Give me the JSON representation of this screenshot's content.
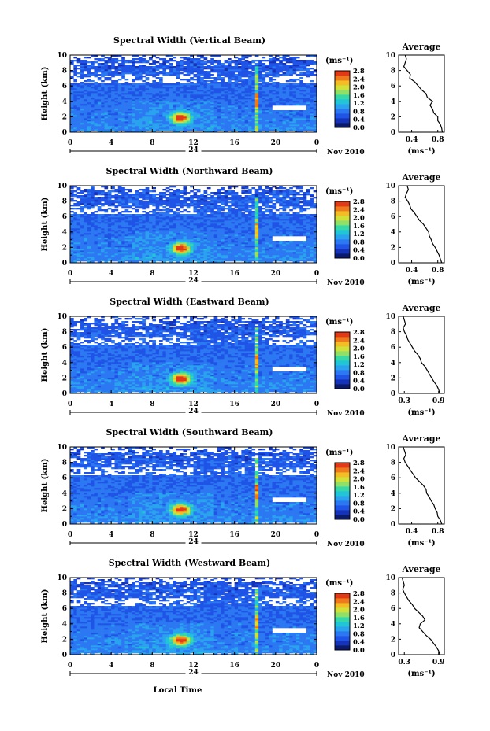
{
  "figure": {
    "height_label": "Height (km)",
    "local_time_label": "Local Time",
    "average_title": "Average",
    "unit_label": "(ms⁻¹)",
    "date_suffix": "Nov 2010",
    "day_label": "24",
    "time_ticks": [
      "0",
      "4",
      "8",
      "12",
      "16",
      "20",
      "0"
    ],
    "height_ticks": [
      "0",
      "2",
      "4",
      "6",
      "8",
      "10"
    ],
    "colorbar_ticks": [
      "0.0",
      "0.4",
      "0.8",
      "1.2",
      "1.6",
      "2.0",
      "2.4",
      "2.8"
    ]
  },
  "chart_data": [
    {
      "type": "heatmap",
      "title": "Spectral Width (Vertical Beam)",
      "x_range": [
        0,
        24
      ],
      "y_range": [
        0,
        10
      ],
      "avg_ticks": [
        "0.4",
        "0.8"
      ],
      "avg_range": [
        0.2,
        0.9
      ],
      "avg_profile": [
        [
          0.87,
          0
        ],
        [
          0.86,
          0.5
        ],
        [
          0.84,
          1
        ],
        [
          0.8,
          1.5
        ],
        [
          0.8,
          2
        ],
        [
          0.74,
          2.5
        ],
        [
          0.72,
          3
        ],
        [
          0.68,
          3.5
        ],
        [
          0.72,
          4
        ],
        [
          0.64,
          4.5
        ],
        [
          0.62,
          5
        ],
        [
          0.55,
          5.5
        ],
        [
          0.5,
          6
        ],
        [
          0.45,
          6.5
        ],
        [
          0.37,
          7
        ],
        [
          0.38,
          7.5
        ],
        [
          0.33,
          8
        ],
        [
          0.28,
          8.5
        ],
        [
          0.3,
          9
        ],
        [
          0.32,
          9.5
        ],
        [
          0.3,
          10
        ]
      ]
    },
    {
      "type": "heatmap",
      "title": "Spectral Width (Northward Beam)",
      "x_range": [
        0,
        24
      ],
      "y_range": [
        0,
        10
      ],
      "avg_ticks": [
        "0.4",
        "0.8"
      ],
      "avg_range": [
        0.2,
        0.9
      ],
      "avg_profile": [
        [
          0.86,
          0
        ],
        [
          0.84,
          0.5
        ],
        [
          0.82,
          1
        ],
        [
          0.79,
          1.5
        ],
        [
          0.76,
          2
        ],
        [
          0.72,
          2.5
        ],
        [
          0.7,
          3
        ],
        [
          0.67,
          3.5
        ],
        [
          0.66,
          4
        ],
        [
          0.62,
          4.5
        ],
        [
          0.58,
          5
        ],
        [
          0.52,
          5.5
        ],
        [
          0.48,
          6
        ],
        [
          0.44,
          6.5
        ],
        [
          0.39,
          7
        ],
        [
          0.37,
          7.5
        ],
        [
          0.34,
          8
        ],
        [
          0.3,
          8.5
        ],
        [
          0.32,
          9
        ],
        [
          0.35,
          9.5
        ],
        [
          0.33,
          10
        ]
      ]
    },
    {
      "type": "heatmap",
      "title": "Spectral Width (Eastward Beam)",
      "x_range": [
        0,
        24
      ],
      "y_range": [
        0,
        10
      ],
      "avg_ticks": [
        "0.3",
        "0.9"
      ],
      "avg_range": [
        0.2,
        1.0
      ],
      "avg_profile": [
        [
          0.92,
          0
        ],
        [
          0.9,
          0.5
        ],
        [
          0.87,
          1
        ],
        [
          0.82,
          1.5
        ],
        [
          0.78,
          2
        ],
        [
          0.74,
          2.5
        ],
        [
          0.7,
          3
        ],
        [
          0.66,
          3.5
        ],
        [
          0.6,
          4
        ],
        [
          0.58,
          4.5
        ],
        [
          0.54,
          5
        ],
        [
          0.48,
          5.5
        ],
        [
          0.44,
          6
        ],
        [
          0.4,
          6.5
        ],
        [
          0.36,
          7
        ],
        [
          0.34,
          7.5
        ],
        [
          0.3,
          8
        ],
        [
          0.28,
          8.5
        ],
        [
          0.32,
          9
        ],
        [
          0.3,
          9.5
        ],
        [
          0.28,
          10
        ]
      ]
    },
    {
      "type": "heatmap",
      "title": "Spectral Width (Southward Beam)",
      "x_range": [
        0,
        24
      ],
      "y_range": [
        0,
        10
      ],
      "avg_ticks": [
        "0.4",
        "0.8"
      ],
      "avg_range": [
        0.2,
        0.9
      ],
      "avg_profile": [
        [
          0.86,
          0
        ],
        [
          0.84,
          0.5
        ],
        [
          0.8,
          1
        ],
        [
          0.79,
          1.5
        ],
        [
          0.76,
          2
        ],
        [
          0.74,
          2.5
        ],
        [
          0.7,
          3
        ],
        [
          0.67,
          3.5
        ],
        [
          0.63,
          4
        ],
        [
          0.62,
          4.5
        ],
        [
          0.58,
          5
        ],
        [
          0.52,
          5.5
        ],
        [
          0.46,
          6
        ],
        [
          0.42,
          6.5
        ],
        [
          0.38,
          7
        ],
        [
          0.34,
          7.5
        ],
        [
          0.3,
          8
        ],
        [
          0.28,
          8.5
        ],
        [
          0.31,
          9
        ],
        [
          0.29,
          9.5
        ],
        [
          0.27,
          10
        ]
      ]
    },
    {
      "type": "heatmap",
      "title": "Spectral Width (Westward Beam)",
      "x_range": [
        0,
        24
      ],
      "y_range": [
        0,
        10
      ],
      "avg_ticks": [
        "0.3",
        "0.9"
      ],
      "avg_range": [
        0.2,
        1.0
      ],
      "avg_profile": [
        [
          0.92,
          0
        ],
        [
          0.9,
          0.5
        ],
        [
          0.86,
          1
        ],
        [
          0.81,
          1.5
        ],
        [
          0.76,
          2
        ],
        [
          0.68,
          2.5
        ],
        [
          0.62,
          3
        ],
        [
          0.56,
          3.5
        ],
        [
          0.58,
          4
        ],
        [
          0.66,
          4.5
        ],
        [
          0.62,
          5
        ],
        [
          0.55,
          5.5
        ],
        [
          0.48,
          6
        ],
        [
          0.44,
          6.5
        ],
        [
          0.38,
          7
        ],
        [
          0.34,
          7.5
        ],
        [
          0.3,
          8
        ],
        [
          0.27,
          8.5
        ],
        [
          0.3,
          9
        ],
        [
          0.28,
          9.5
        ],
        [
          0.26,
          10
        ]
      ]
    }
  ],
  "colors": {
    "colormap": [
      "#0b1a6b",
      "#1533b8",
      "#1f54e6",
      "#2c78f2",
      "#2aa3ef",
      "#22c4d8",
      "#35d8a6",
      "#8fe068",
      "#d2e03a",
      "#f2bd25",
      "#ef7a1e",
      "#e23a16"
    ]
  }
}
